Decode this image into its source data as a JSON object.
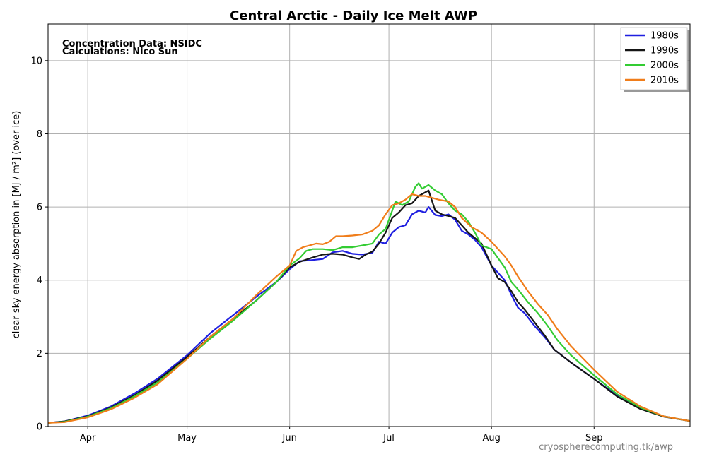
{
  "chart_data": {
    "type": "line",
    "title": "Central Arctic - Daily Ice Melt  AWP",
    "ylabel": "clear sky energy absorption in  [MJ / m²] (over ice)",
    "xlabel": "",
    "annotations": [
      "Concentration Data: NSIDC",
      "Calculations: Nico Sun"
    ],
    "source": "cryospherecomputing.tk/awp",
    "xlim": [
      "03-20",
      "09-30"
    ],
    "ylim": [
      0,
      11
    ],
    "yticks": [
      0,
      2,
      4,
      6,
      8,
      10
    ],
    "xticks": [
      {
        "label": "Apr",
        "date": "04-01"
      },
      {
        "label": "May",
        "date": "05-01"
      },
      {
        "label": "Jun",
        "date": "06-01"
      },
      {
        "label": "Jul",
        "date": "07-01"
      },
      {
        "label": "Aug",
        "date": "08-01"
      },
      {
        "label": "Sep",
        "date": "09-01"
      }
    ],
    "grid": true,
    "legend_position": "top-right",
    "series": [
      {
        "name": "1980s",
        "color": "#1f1fe0",
        "points": [
          [
            "03-20",
            0.1
          ],
          [
            "03-25",
            0.14
          ],
          [
            "04-01",
            0.3
          ],
          [
            "04-08",
            0.55
          ],
          [
            "04-15",
            0.9
          ],
          [
            "04-22",
            1.3
          ],
          [
            "05-01",
            1.95
          ],
          [
            "05-08",
            2.55
          ],
          [
            "05-15",
            3.05
          ],
          [
            "05-22",
            3.55
          ],
          [
            "05-28",
            3.95
          ],
          [
            "06-01",
            4.3
          ],
          [
            "06-04",
            4.52
          ],
          [
            "06-08",
            4.55
          ],
          [
            "06-11",
            4.58
          ],
          [
            "06-14",
            4.76
          ],
          [
            "06-17",
            4.8
          ],
          [
            "06-20",
            4.72
          ],
          [
            "06-23",
            4.7
          ],
          [
            "06-26",
            4.75
          ],
          [
            "06-28",
            5.05
          ],
          [
            "06-30",
            5.0
          ],
          [
            "07-02",
            5.3
          ],
          [
            "07-04",
            5.45
          ],
          [
            "07-06",
            5.5
          ],
          [
            "07-08",
            5.8
          ],
          [
            "07-10",
            5.9
          ],
          [
            "07-12",
            5.85
          ],
          [
            "07-13",
            6.0
          ],
          [
            "07-15",
            5.78
          ],
          [
            "07-17",
            5.75
          ],
          [
            "07-19",
            5.8
          ],
          [
            "07-21",
            5.65
          ],
          [
            "07-23",
            5.35
          ],
          [
            "07-25",
            5.25
          ],
          [
            "07-27",
            5.1
          ],
          [
            "07-29",
            4.9
          ],
          [
            "08-01",
            4.4
          ],
          [
            "08-03",
            4.2
          ],
          [
            "08-05",
            4.0
          ],
          [
            "08-07",
            3.6
          ],
          [
            "08-09",
            3.25
          ],
          [
            "08-11",
            3.1
          ],
          [
            "08-14",
            2.75
          ],
          [
            "08-17",
            2.45
          ],
          [
            "08-20",
            2.1
          ],
          [
            "08-25",
            1.75
          ],
          [
            "09-01",
            1.3
          ],
          [
            "09-08",
            0.85
          ],
          [
            "09-15",
            0.5
          ],
          [
            "09-22",
            0.28
          ],
          [
            "09-30",
            0.15
          ]
        ]
      },
      {
        "name": "1990s",
        "color": "#151515",
        "points": [
          [
            "03-20",
            0.1
          ],
          [
            "03-25",
            0.14
          ],
          [
            "04-01",
            0.28
          ],
          [
            "04-08",
            0.52
          ],
          [
            "04-15",
            0.85
          ],
          [
            "04-22",
            1.25
          ],
          [
            "05-01",
            1.9
          ],
          [
            "05-08",
            2.45
          ],
          [
            "05-15",
            2.95
          ],
          [
            "05-22",
            3.45
          ],
          [
            "05-28",
            3.95
          ],
          [
            "06-01",
            4.35
          ],
          [
            "06-04",
            4.5
          ],
          [
            "06-08",
            4.62
          ],
          [
            "06-11",
            4.7
          ],
          [
            "06-14",
            4.72
          ],
          [
            "06-17",
            4.7
          ],
          [
            "06-20",
            4.62
          ],
          [
            "06-22",
            4.58
          ],
          [
            "06-24",
            4.7
          ],
          [
            "06-26",
            4.78
          ],
          [
            "06-28",
            5.0
          ],
          [
            "06-30",
            5.3
          ],
          [
            "07-02",
            5.7
          ],
          [
            "07-04",
            5.85
          ],
          [
            "07-06",
            6.05
          ],
          [
            "07-08",
            6.1
          ],
          [
            "07-10",
            6.3
          ],
          [
            "07-12",
            6.4
          ],
          [
            "07-13",
            6.45
          ],
          [
            "07-15",
            5.9
          ],
          [
            "07-17",
            5.8
          ],
          [
            "07-19",
            5.75
          ],
          [
            "07-21",
            5.7
          ],
          [
            "07-23",
            5.5
          ],
          [
            "07-25",
            5.3
          ],
          [
            "07-27",
            5.15
          ],
          [
            "07-29",
            5.0
          ],
          [
            "08-01",
            4.4
          ],
          [
            "08-03",
            4.05
          ],
          [
            "08-05",
            3.95
          ],
          [
            "08-07",
            3.7
          ],
          [
            "08-09",
            3.4
          ],
          [
            "08-11",
            3.2
          ],
          [
            "08-14",
            2.85
          ],
          [
            "08-17",
            2.5
          ],
          [
            "08-20",
            2.1
          ],
          [
            "08-25",
            1.75
          ],
          [
            "09-01",
            1.3
          ],
          [
            "09-08",
            0.82
          ],
          [
            "09-15",
            0.48
          ],
          [
            "09-22",
            0.27
          ],
          [
            "09-30",
            0.15
          ]
        ]
      },
      {
        "name": "2000s",
        "color": "#33cc33",
        "points": [
          [
            "03-20",
            0.1
          ],
          [
            "03-25",
            0.13
          ],
          [
            "04-01",
            0.27
          ],
          [
            "04-08",
            0.5
          ],
          [
            "04-15",
            0.82
          ],
          [
            "04-22",
            1.2
          ],
          [
            "05-01",
            1.85
          ],
          [
            "05-08",
            2.4
          ],
          [
            "05-15",
            2.9
          ],
          [
            "05-22",
            3.45
          ],
          [
            "05-28",
            3.95
          ],
          [
            "06-01",
            4.4
          ],
          [
            "06-04",
            4.6
          ],
          [
            "06-06",
            4.8
          ],
          [
            "06-08",
            4.85
          ],
          [
            "06-11",
            4.85
          ],
          [
            "06-14",
            4.82
          ],
          [
            "06-17",
            4.9
          ],
          [
            "06-20",
            4.9
          ],
          [
            "06-23",
            4.95
          ],
          [
            "06-26",
            5.0
          ],
          [
            "06-28",
            5.25
          ],
          [
            "06-30",
            5.4
          ],
          [
            "07-02",
            5.9
          ],
          [
            "07-03",
            6.15
          ],
          [
            "07-05",
            6.05
          ],
          [
            "07-07",
            6.15
          ],
          [
            "07-09",
            6.55
          ],
          [
            "07-10",
            6.65
          ],
          [
            "07-11",
            6.5
          ],
          [
            "07-13",
            6.6
          ],
          [
            "07-15",
            6.45
          ],
          [
            "07-17",
            6.35
          ],
          [
            "07-19",
            6.1
          ],
          [
            "07-21",
            5.9
          ],
          [
            "07-23",
            5.8
          ],
          [
            "07-25",
            5.6
          ],
          [
            "07-27",
            5.3
          ],
          [
            "07-29",
            4.95
          ],
          [
            "08-01",
            4.85
          ],
          [
            "08-03",
            4.6
          ],
          [
            "08-05",
            4.35
          ],
          [
            "08-07",
            3.95
          ],
          [
            "08-09",
            3.75
          ],
          [
            "08-12",
            3.4
          ],
          [
            "08-15",
            3.1
          ],
          [
            "08-18",
            2.75
          ],
          [
            "08-21",
            2.35
          ],
          [
            "08-25",
            1.95
          ],
          [
            "09-01",
            1.4
          ],
          [
            "09-08",
            0.88
          ],
          [
            "09-15",
            0.52
          ],
          [
            "09-22",
            0.28
          ],
          [
            "09-30",
            0.15
          ]
        ]
      },
      {
        "name": "2010s",
        "color": "#f07d1a",
        "points": [
          [
            "03-20",
            0.1
          ],
          [
            "03-25",
            0.12
          ],
          [
            "04-01",
            0.25
          ],
          [
            "04-08",
            0.47
          ],
          [
            "04-15",
            0.78
          ],
          [
            "04-22",
            1.15
          ],
          [
            "05-01",
            1.85
          ],
          [
            "05-08",
            2.45
          ],
          [
            "05-15",
            2.95
          ],
          [
            "05-22",
            3.6
          ],
          [
            "05-28",
            4.1
          ],
          [
            "06-01",
            4.4
          ],
          [
            "06-03",
            4.8
          ],
          [
            "06-05",
            4.9
          ],
          [
            "06-07",
            4.95
          ],
          [
            "06-09",
            5.0
          ],
          [
            "06-11",
            4.98
          ],
          [
            "06-13",
            5.05
          ],
          [
            "06-15",
            5.2
          ],
          [
            "06-17",
            5.2
          ],
          [
            "06-20",
            5.22
          ],
          [
            "06-23",
            5.25
          ],
          [
            "06-26",
            5.35
          ],
          [
            "06-28",
            5.5
          ],
          [
            "06-30",
            5.8
          ],
          [
            "07-02",
            6.05
          ],
          [
            "07-04",
            6.1
          ],
          [
            "07-06",
            6.2
          ],
          [
            "07-08",
            6.35
          ],
          [
            "07-10",
            6.3
          ],
          [
            "07-12",
            6.3
          ],
          [
            "07-14",
            6.25
          ],
          [
            "07-16",
            6.2
          ],
          [
            "07-19",
            6.15
          ],
          [
            "07-21",
            6.0
          ],
          [
            "07-23",
            5.7
          ],
          [
            "07-26",
            5.45
          ],
          [
            "07-29",
            5.3
          ],
          [
            "08-01",
            5.05
          ],
          [
            "08-03",
            4.85
          ],
          [
            "08-05",
            4.65
          ],
          [
            "08-07",
            4.4
          ],
          [
            "08-09",
            4.1
          ],
          [
            "08-12",
            3.7
          ],
          [
            "08-15",
            3.35
          ],
          [
            "08-18",
            3.05
          ],
          [
            "08-21",
            2.65
          ],
          [
            "08-25",
            2.2
          ],
          [
            "09-01",
            1.55
          ],
          [
            "09-08",
            0.95
          ],
          [
            "09-15",
            0.55
          ],
          [
            "09-22",
            0.28
          ],
          [
            "09-30",
            0.15
          ]
        ]
      }
    ]
  }
}
